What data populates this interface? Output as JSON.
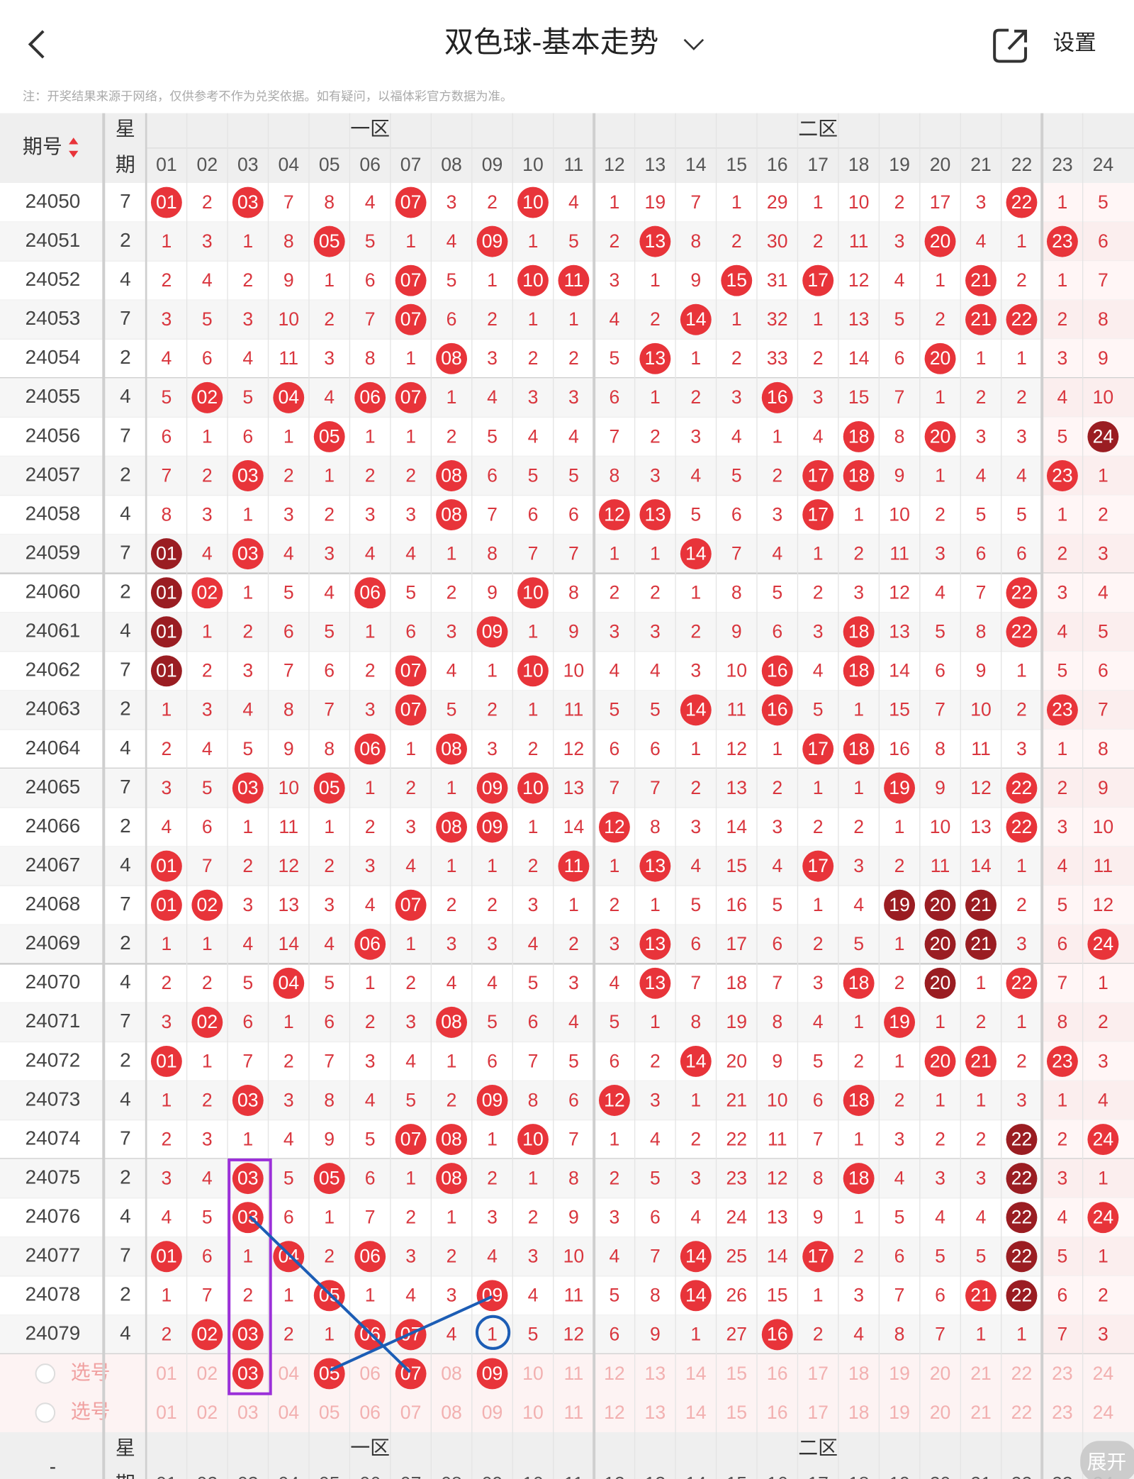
{
  "header": {
    "title": "双色球-基本走势",
    "settings": "设置",
    "note": "注：开奖结果来源于网络，仅供参考不作为兑奖依据。如有疑问，以福体彩官方数据为准。"
  },
  "table": {
    "columns": {
      "issue": "期号",
      "week": [
        "星",
        "期"
      ],
      "zone1": "一区",
      "zone2": "二区",
      "numbers": [
        "01",
        "02",
        "03",
        "04",
        "05",
        "06",
        "07",
        "08",
        "09",
        "10",
        "11",
        "12",
        "13",
        "14",
        "15",
        "16",
        "17",
        "18",
        "19",
        "20",
        "21",
        "22",
        "23",
        "24"
      ]
    },
    "rows": [
      {
        "issue": "24050",
        "week": "7",
        "cells": [
          "01",
          "2",
          "03",
          "7",
          "8",
          "4",
          "07",
          "3",
          "2",
          "10",
          "4",
          "1",
          "19",
          "7",
          "1",
          "29",
          "1",
          "10",
          "2",
          "17",
          "3",
          "22",
          "1",
          "5"
        ],
        "hits": [
          0,
          2,
          6,
          9,
          21
        ],
        "dark": []
      },
      {
        "issue": "24051",
        "week": "2",
        "cells": [
          "1",
          "3",
          "1",
          "8",
          "05",
          "5",
          "1",
          "4",
          "09",
          "1",
          "5",
          "2",
          "13",
          "8",
          "2",
          "30",
          "2",
          "11",
          "3",
          "20",
          "4",
          "1",
          "23",
          "6"
        ],
        "hits": [
          4,
          8,
          12,
          19,
          22
        ],
        "dark": []
      },
      {
        "issue": "24052",
        "week": "4",
        "cells": [
          "2",
          "4",
          "2",
          "9",
          "1",
          "6",
          "07",
          "5",
          "1",
          "10",
          "11",
          "3",
          "1",
          "9",
          "15",
          "31",
          "17",
          "12",
          "4",
          "1",
          "21",
          "2",
          "1",
          "7"
        ],
        "hits": [
          6,
          9,
          10,
          14,
          16,
          20
        ],
        "dark": []
      },
      {
        "issue": "24053",
        "week": "7",
        "cells": [
          "3",
          "5",
          "3",
          "10",
          "2",
          "7",
          "07",
          "6",
          "2",
          "1",
          "1",
          "4",
          "2",
          "14",
          "1",
          "32",
          "1",
          "13",
          "5",
          "2",
          "21",
          "22",
          "2",
          "8"
        ],
        "hits": [
          6,
          13,
          20,
          21
        ],
        "dark": []
      },
      {
        "issue": "24054",
        "week": "2",
        "cells": [
          "4",
          "6",
          "4",
          "11",
          "3",
          "8",
          "1",
          "08",
          "3",
          "2",
          "2",
          "5",
          "13",
          "1",
          "2",
          "33",
          "2",
          "14",
          "6",
          "20",
          "1",
          "1",
          "3",
          "9"
        ],
        "hits": [
          7,
          12,
          19
        ],
        "dark": []
      },
      {
        "issue": "24055",
        "week": "4",
        "cells": [
          "5",
          "02",
          "5",
          "04",
          "4",
          "06",
          "07",
          "1",
          "4",
          "3",
          "3",
          "6",
          "1",
          "2",
          "3",
          "16",
          "3",
          "15",
          "7",
          "1",
          "2",
          "2",
          "4",
          "10"
        ],
        "hits": [
          1,
          3,
          5,
          6,
          15
        ],
        "dark": []
      },
      {
        "issue": "24056",
        "week": "7",
        "cells": [
          "6",
          "1",
          "6",
          "1",
          "05",
          "1",
          "1",
          "2",
          "5",
          "4",
          "4",
          "7",
          "2",
          "3",
          "4",
          "1",
          "4",
          "18",
          "8",
          "20",
          "3",
          "3",
          "5",
          "24"
        ],
        "hits": [
          4,
          17,
          19
        ],
        "dark": [
          23
        ]
      },
      {
        "issue": "24057",
        "week": "2",
        "cells": [
          "7",
          "2",
          "03",
          "2",
          "1",
          "2",
          "2",
          "08",
          "6",
          "5",
          "5",
          "8",
          "3",
          "4",
          "5",
          "2",
          "17",
          "18",
          "9",
          "1",
          "4",
          "4",
          "23",
          "1"
        ],
        "hits": [
          2,
          7,
          16,
          17,
          22
        ],
        "dark": []
      },
      {
        "issue": "24058",
        "week": "4",
        "cells": [
          "8",
          "3",
          "1",
          "3",
          "2",
          "3",
          "3",
          "08",
          "7",
          "6",
          "6",
          "12",
          "13",
          "5",
          "6",
          "3",
          "17",
          "1",
          "10",
          "2",
          "5",
          "5",
          "1",
          "2"
        ],
        "hits": [
          7,
          11,
          12,
          16
        ],
        "dark": []
      },
      {
        "issue": "24059",
        "week": "7",
        "cells": [
          "01",
          "4",
          "03",
          "4",
          "3",
          "4",
          "4",
          "1",
          "8",
          "7",
          "7",
          "1",
          "1",
          "14",
          "7",
          "4",
          "1",
          "2",
          "11",
          "3",
          "6",
          "6",
          "2",
          "3"
        ],
        "hits": [
          2,
          13
        ],
        "dark": [
          0
        ]
      },
      {
        "issue": "24060",
        "week": "2",
        "cells": [
          "01",
          "02",
          "1",
          "5",
          "4",
          "06",
          "5",
          "2",
          "9",
          "10",
          "8",
          "2",
          "2",
          "1",
          "8",
          "5",
          "2",
          "3",
          "12",
          "4",
          "7",
          "22",
          "3",
          "4"
        ],
        "hits": [
          1,
          5,
          9,
          21
        ],
        "dark": [
          0
        ]
      },
      {
        "issue": "24061",
        "week": "4",
        "cells": [
          "01",
          "1",
          "2",
          "6",
          "5",
          "1",
          "6",
          "3",
          "09",
          "1",
          "9",
          "3",
          "3",
          "2",
          "9",
          "6",
          "3",
          "18",
          "13",
          "5",
          "8",
          "22",
          "4",
          "5"
        ],
        "hits": [
          8,
          17,
          21
        ],
        "dark": [
          0
        ]
      },
      {
        "issue": "24062",
        "week": "7",
        "cells": [
          "01",
          "2",
          "3",
          "7",
          "6",
          "2",
          "07",
          "4",
          "1",
          "10",
          "10",
          "4",
          "4",
          "3",
          "10",
          "16",
          "4",
          "18",
          "14",
          "6",
          "9",
          "1",
          "5",
          "6"
        ],
        "hits": [
          6,
          9,
          15,
          17
        ],
        "dark": [
          0
        ]
      },
      {
        "issue": "24063",
        "week": "2",
        "cells": [
          "1",
          "3",
          "4",
          "8",
          "7",
          "3",
          "07",
          "5",
          "2",
          "1",
          "11",
          "5",
          "5",
          "14",
          "11",
          "16",
          "5",
          "1",
          "15",
          "7",
          "10",
          "2",
          "23",
          "7"
        ],
        "hits": [
          6,
          13,
          15,
          22
        ],
        "dark": []
      },
      {
        "issue": "24064",
        "week": "4",
        "cells": [
          "2",
          "4",
          "5",
          "9",
          "8",
          "06",
          "1",
          "08",
          "3",
          "2",
          "12",
          "6",
          "6",
          "1",
          "12",
          "1",
          "17",
          "18",
          "16",
          "8",
          "11",
          "3",
          "1",
          "8"
        ],
        "hits": [
          5,
          7,
          16,
          17
        ],
        "dark": []
      },
      {
        "issue": "24065",
        "week": "7",
        "cells": [
          "3",
          "5",
          "03",
          "10",
          "05",
          "1",
          "2",
          "1",
          "09",
          "10",
          "13",
          "7",
          "7",
          "2",
          "13",
          "2",
          "1",
          "1",
          "19",
          "9",
          "12",
          "22",
          "2",
          "9"
        ],
        "hits": [
          2,
          4,
          8,
          9,
          18,
          21
        ],
        "dark": []
      },
      {
        "issue": "24066",
        "week": "2",
        "cells": [
          "4",
          "6",
          "1",
          "11",
          "1",
          "2",
          "3",
          "08",
          "09",
          "1",
          "14",
          "12",
          "8",
          "3",
          "14",
          "3",
          "2",
          "2",
          "1",
          "10",
          "13",
          "22",
          "3",
          "10"
        ],
        "hits": [
          7,
          8,
          11,
          21
        ],
        "dark": []
      },
      {
        "issue": "24067",
        "week": "4",
        "cells": [
          "01",
          "7",
          "2",
          "12",
          "2",
          "3",
          "4",
          "1",
          "1",
          "2",
          "11",
          "1",
          "13",
          "4",
          "15",
          "4",
          "17",
          "3",
          "2",
          "11",
          "14",
          "1",
          "4",
          "11"
        ],
        "hits": [
          0,
          10,
          12,
          16
        ],
        "dark": []
      },
      {
        "issue": "24068",
        "week": "7",
        "cells": [
          "01",
          "02",
          "3",
          "13",
          "3",
          "4",
          "07",
          "2",
          "2",
          "3",
          "1",
          "2",
          "1",
          "5",
          "16",
          "5",
          "1",
          "4",
          "19",
          "20",
          "21",
          "2",
          "5",
          "12"
        ],
        "hits": [
          0,
          1,
          6
        ],
        "dark": [
          18,
          19,
          20
        ]
      },
      {
        "issue": "24069",
        "week": "2",
        "cells": [
          "1",
          "1",
          "4",
          "14",
          "4",
          "06",
          "1",
          "3",
          "3",
          "4",
          "2",
          "3",
          "13",
          "6",
          "17",
          "6",
          "2",
          "5",
          "1",
          "20",
          "21",
          "3",
          "6",
          "24"
        ],
        "hits": [
          5,
          12,
          23
        ],
        "dark": [
          19,
          20
        ]
      },
      {
        "issue": "24070",
        "week": "4",
        "cells": [
          "2",
          "2",
          "5",
          "04",
          "5",
          "1",
          "2",
          "4",
          "4",
          "5",
          "3",
          "4",
          "13",
          "7",
          "18",
          "7",
          "3",
          "18",
          "2",
          "20",
          "1",
          "22",
          "7",
          "1"
        ],
        "hits": [
          3,
          12,
          17,
          21
        ],
        "dark": [
          19
        ]
      },
      {
        "issue": "24071",
        "week": "7",
        "cells": [
          "3",
          "02",
          "6",
          "1",
          "6",
          "2",
          "3",
          "08",
          "5",
          "6",
          "4",
          "5",
          "1",
          "8",
          "19",
          "8",
          "4",
          "1",
          "19",
          "1",
          "2",
          "1",
          "8",
          "2"
        ],
        "hits": [
          1,
          7,
          18
        ],
        "dark": []
      },
      {
        "issue": "24072",
        "week": "2",
        "cells": [
          "01",
          "1",
          "7",
          "2",
          "7",
          "3",
          "4",
          "1",
          "6",
          "7",
          "5",
          "6",
          "2",
          "14",
          "20",
          "9",
          "5",
          "2",
          "1",
          "20",
          "21",
          "2",
          "23",
          "3"
        ],
        "hits": [
          0,
          13,
          19,
          20,
          22
        ],
        "dark": []
      },
      {
        "issue": "24073",
        "week": "4",
        "cells": [
          "1",
          "2",
          "03",
          "3",
          "8",
          "4",
          "5",
          "2",
          "09",
          "8",
          "6",
          "12",
          "3",
          "1",
          "21",
          "10",
          "6",
          "18",
          "2",
          "1",
          "1",
          "3",
          "1",
          "4"
        ],
        "hits": [
          2,
          8,
          11,
          17
        ],
        "dark": []
      },
      {
        "issue": "24074",
        "week": "7",
        "cells": [
          "2",
          "3",
          "1",
          "4",
          "9",
          "5",
          "07",
          "08",
          "1",
          "10",
          "7",
          "1",
          "4",
          "2",
          "22",
          "11",
          "7",
          "1",
          "3",
          "2",
          "2",
          "22",
          "2",
          "24"
        ],
        "hits": [
          6,
          7,
          9,
          23
        ],
        "dark": [
          21
        ]
      },
      {
        "issue": "24075",
        "week": "2",
        "cells": [
          "3",
          "4",
          "03",
          "5",
          "05",
          "6",
          "1",
          "08",
          "2",
          "1",
          "8",
          "2",
          "5",
          "3",
          "23",
          "12",
          "8",
          "18",
          "4",
          "3",
          "3",
          "22",
          "3",
          "1"
        ],
        "hits": [
          2,
          4,
          7,
          17
        ],
        "dark": [
          21
        ]
      },
      {
        "issue": "24076",
        "week": "4",
        "cells": [
          "4",
          "5",
          "03",
          "6",
          "1",
          "7",
          "2",
          "1",
          "3",
          "2",
          "9",
          "3",
          "6",
          "4",
          "24",
          "13",
          "9",
          "1",
          "5",
          "4",
          "4",
          "22",
          "4",
          "24"
        ],
        "hits": [
          2,
          23
        ],
        "dark": [
          21
        ]
      },
      {
        "issue": "24077",
        "week": "7",
        "cells": [
          "01",
          "6",
          "1",
          "04",
          "2",
          "06",
          "3",
          "2",
          "4",
          "3",
          "10",
          "4",
          "7",
          "14",
          "25",
          "14",
          "17",
          "2",
          "6",
          "5",
          "5",
          "22",
          "5",
          "1"
        ],
        "hits": [
          0,
          3,
          5,
          13,
          16
        ],
        "dark": [
          21
        ]
      },
      {
        "issue": "24078",
        "week": "2",
        "cells": [
          "1",
          "7",
          "2",
          "1",
          "05",
          "1",
          "4",
          "3",
          "09",
          "4",
          "11",
          "5",
          "8",
          "14",
          "26",
          "15",
          "1",
          "3",
          "7",
          "6",
          "21",
          "22",
          "6",
          "2"
        ],
        "hits": [
          4,
          8,
          13,
          20
        ],
        "dark": [
          21
        ]
      },
      {
        "issue": "24079",
        "week": "4",
        "cells": [
          "2",
          "02",
          "03",
          "2",
          "1",
          "06",
          "07",
          "4",
          "1",
          "5",
          "12",
          "6",
          "9",
          "1",
          "27",
          "16",
          "2",
          "4",
          "8",
          "7",
          "1",
          "1",
          "7",
          "3"
        ],
        "hits": [
          1,
          2,
          5,
          6,
          15
        ],
        "dark": []
      }
    ],
    "select_rows": [
      {
        "label": "选号",
        "picked": [
          2,
          4,
          6,
          8
        ]
      },
      {
        "label": "选号",
        "picked": []
      }
    ],
    "footer_header": {
      "issue": "-"
    },
    "expand": "展开"
  }
}
